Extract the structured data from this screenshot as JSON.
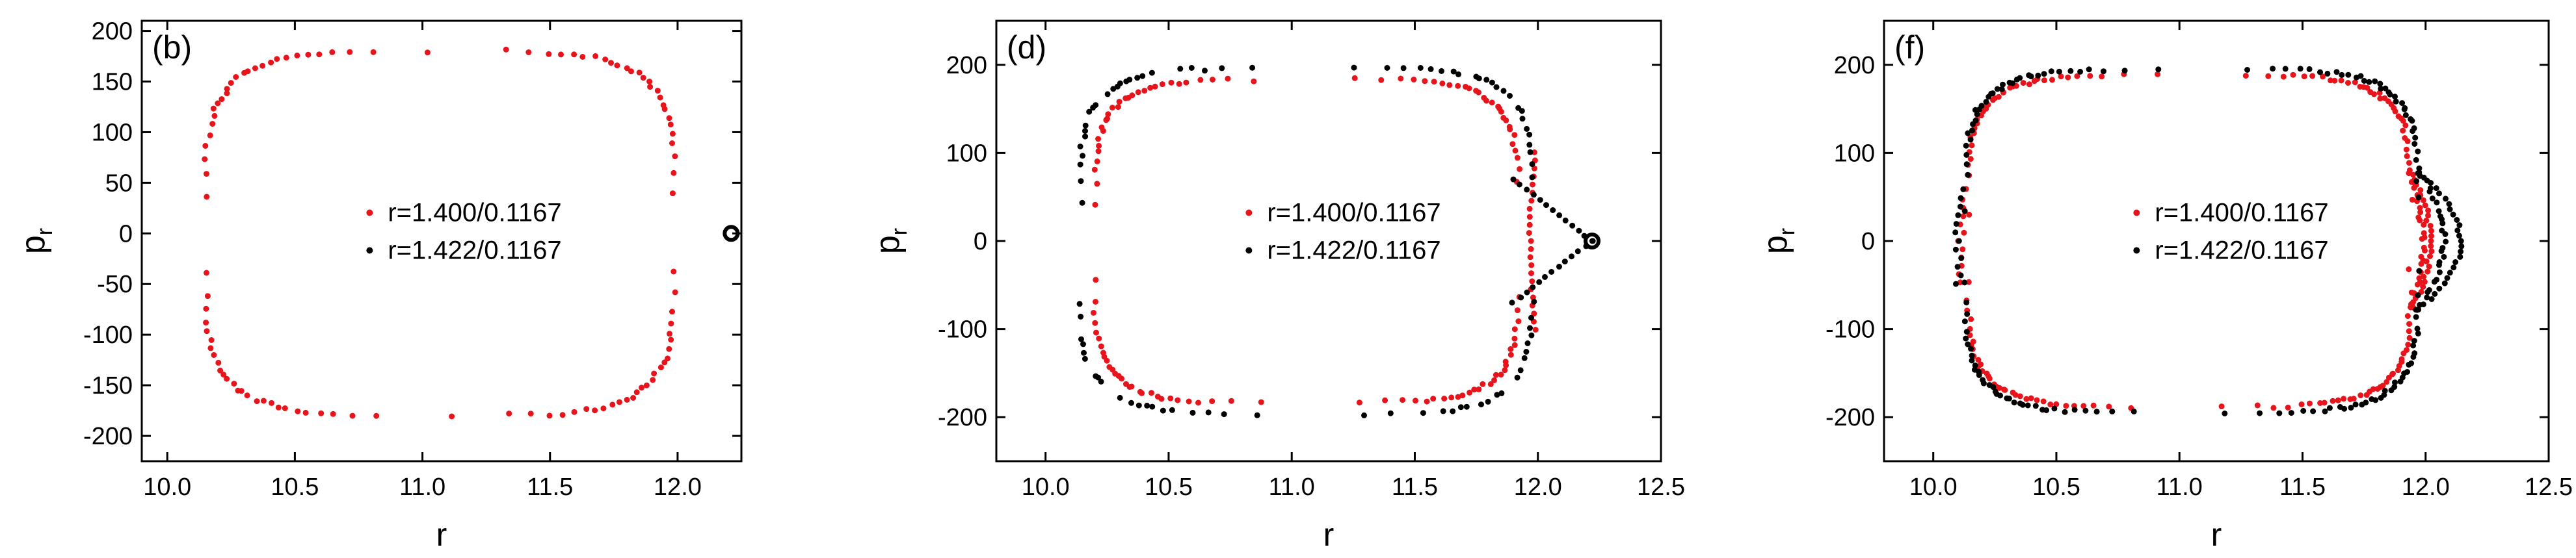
{
  "figure": {
    "description_panels": [
      "(b)",
      "(d)",
      "(f)"
    ]
  },
  "chart_data": [
    {
      "type": "scatter",
      "panel_label": "(b)",
      "xlabel": "r",
      "ylabel_main": "p",
      "ylabel_sub": "r",
      "xlim": [
        9.9,
        12.25
      ],
      "ylim": [
        -225,
        210
      ],
      "xticks": [
        10.0,
        10.5,
        11.0,
        11.5,
        12.0
      ],
      "xtick_labels": [
        "10.0",
        "10.5",
        "11.0",
        "11.5",
        "12.0"
      ],
      "yticks": [
        -200,
        -150,
        -100,
        -50,
        0,
        50,
        100,
        150,
        200
      ],
      "ytick_labels": [
        "-200",
        "-150",
        "-100",
        "-50",
        "0",
        "50",
        "100",
        "150",
        "200"
      ],
      "legend_position": "center",
      "series": [
        {
          "name": "r=1.400/0.1167",
          "color": "#e8141b",
          "shape": "loop",
          "loop": {
            "cx": 11.07,
            "cy": 0,
            "rx": 0.92,
            "ry": 180,
            "n": 110,
            "exp": 4.5
          }
        },
        {
          "name": "r=1.422/0.1167",
          "color": "#000000",
          "shape": "ring",
          "ring": {
            "x": 12.21,
            "y": 0
          }
        }
      ]
    },
    {
      "type": "scatter",
      "panel_label": "(d)",
      "xlabel": "r",
      "ylabel_main": "p",
      "ylabel_sub": "r",
      "xlim": [
        9.8,
        12.5
      ],
      "ylim": [
        -250,
        250
      ],
      "xticks": [
        10.0,
        10.5,
        11.0,
        11.5,
        12.0,
        12.5
      ],
      "xtick_labels": [
        "10.0",
        "10.5",
        "11.0",
        "11.5",
        "12.0",
        "12.5"
      ],
      "yticks": [
        -200,
        -100,
        0,
        100,
        200
      ],
      "ytick_labels": [
        "-200",
        "-100",
        "0",
        "100",
        "200"
      ],
      "legend_position": "center",
      "series": [
        {
          "name": "r=1.400/0.1167",
          "color": "#e8141b",
          "shape": "loop_gap",
          "loop": {
            "cx": 11.06,
            "cy": 0,
            "rx": 0.86,
            "ry": 183,
            "n": 120,
            "exp": 5,
            "gap": 0.28
          }
        },
        {
          "name": "r=1.422/0.1167",
          "color": "#000000",
          "shape": "loop_cusp",
          "loop": {
            "cx": 11.06,
            "cy": 0,
            "rx": 0.92,
            "ry": 196,
            "n": 120,
            "exp": 5,
            "gap": 0.3,
            "sparse": true
          },
          "cusp": {
            "x": 12.22,
            "y": 0
          },
          "ring": {
            "x": 12.22,
            "y": 0
          }
        }
      ]
    },
    {
      "type": "scatter",
      "panel_label": "(f)",
      "xlabel": "r",
      "ylabel_main": "p",
      "ylabel_sub": "r",
      "xlim": [
        9.8,
        12.5
      ],
      "ylim": [
        -250,
        250
      ],
      "xticks": [
        10.0,
        10.5,
        11.0,
        11.5,
        12.0,
        12.5
      ],
      "xtick_labels": [
        "10.0",
        "10.5",
        "11.0",
        "11.5",
        "12.0",
        "12.5"
      ],
      "yticks": [
        -200,
        -100,
        0,
        100,
        200
      ],
      "ytick_labels": [
        "-200",
        "-100",
        "0",
        "100",
        "200"
      ],
      "legend_position": "center",
      "series": [
        {
          "name": "r=1.400/0.1167",
          "color": "#e8141b",
          "shape": "loop_bulge",
          "loop": {
            "cx": 11.04,
            "cy": 0,
            "rx": 0.9,
            "ry": 188,
            "n": 150,
            "exp": 5,
            "bulge": 0.08
          }
        },
        {
          "name": "r=1.422/0.1167",
          "color": "#000000",
          "shape": "loop_bulge",
          "loop": {
            "cx": 11.05,
            "cy": 0,
            "rx": 0.92,
            "ry": 195,
            "n": 150,
            "exp": 5,
            "bulge": 0.17
          }
        }
      ]
    }
  ]
}
